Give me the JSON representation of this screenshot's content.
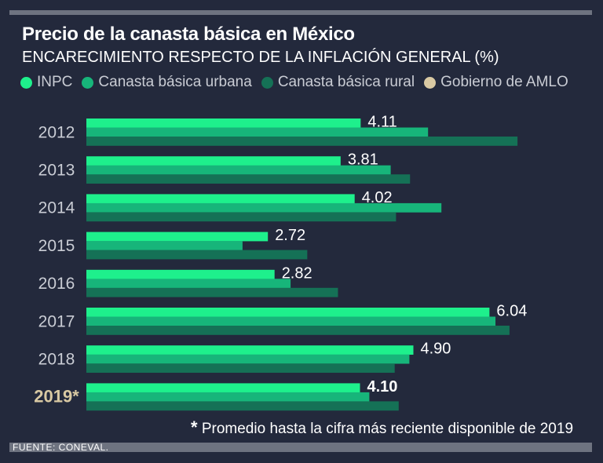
{
  "title": "Precio de la canasta básica en México",
  "subtitle": "ENCARECIMIENTO RESPECTO DE LA INFLACIÓN GENERAL (%)",
  "legend": [
    {
      "label": "INPC",
      "color": "#1ef08c"
    },
    {
      "label": "Canasta básica urbana",
      "color": "#17b57a"
    },
    {
      "label": "Canasta básica rural",
      "color": "#157156"
    },
    {
      "label": "Gobierno de AMLO",
      "color": "#d9c9a3"
    }
  ],
  "footnote": {
    "star": "*",
    "text": "Promedio hasta la cifra más reciente disponible de 2019"
  },
  "source": "FUENTE: CONEVAL.",
  "chart_data": {
    "type": "bar",
    "orientation": "horizontal",
    "title": "Precio de la canasta básica en México",
    "subtitle": "ENCARECIMIENTO RESPECTO DE LA INFLACIÓN GENERAL (%)",
    "categories": [
      "2012",
      "2013",
      "2014",
      "2015",
      "2016",
      "2017",
      "2018",
      "2019*"
    ],
    "highlight_category": "2019*",
    "highlight_color": "#d9c9a3",
    "series": [
      {
        "name": "INPC",
        "color": "#1ef08c",
        "values": [
          4.11,
          3.81,
          4.02,
          2.72,
          2.82,
          6.04,
          4.9,
          4.1
        ],
        "labels": [
          "4.11",
          "3.81",
          "4.02",
          "2.72",
          "2.82",
          "6.04",
          "4.90",
          "4.10"
        ]
      },
      {
        "name": "Canasta básica urbana",
        "color": "#17b57a",
        "values": [
          5.12,
          4.56,
          5.32,
          2.34,
          3.06,
          6.13,
          4.84,
          4.24
        ]
      },
      {
        "name": "Canasta básica rural",
        "color": "#157156",
        "values": [
          6.46,
          4.85,
          4.64,
          3.31,
          3.77,
          6.34,
          4.62,
          4.68
        ]
      }
    ],
    "xlim": [
      0,
      7
    ],
    "grid": false,
    "legend_position": "top"
  }
}
